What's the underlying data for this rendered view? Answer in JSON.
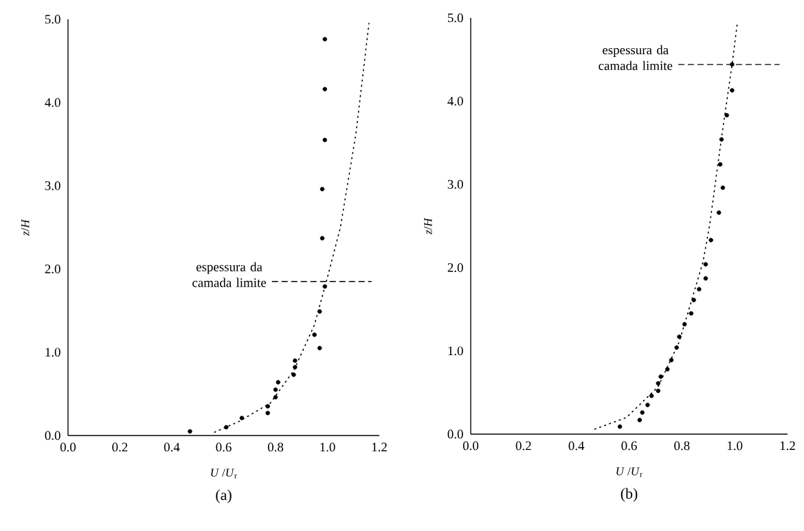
{
  "chart_data": [
    {
      "type": "scatter",
      "title": "(a)",
      "xlabel": "*U* /*U*$_{r}$",
      "ylabel": "*z*/*H*",
      "xlim": [
        0,
        1.2
      ],
      "ylim": [
        0,
        5
      ],
      "xticks": [
        {
          "value": 0,
          "label": "0.0"
        },
        {
          "value": 0.2,
          "label": "0.2"
        },
        {
          "value": 0.4,
          "label": "0.4"
        },
        {
          "value": 0.6,
          "label": "0.6"
        },
        {
          "value": 0.8,
          "label": "0.8"
        },
        {
          "value": 1,
          "label": "1.0"
        },
        {
          "value": 1.2,
          "label": "1.2"
        }
      ],
      "yticks": [
        {
          "value": 0,
          "label": "0.0"
        },
        {
          "value": 1,
          "label": "1.0"
        },
        {
          "value": 2,
          "label": "2.0"
        },
        {
          "value": 3,
          "label": "3.0"
        },
        {
          "value": 4,
          "label": "4.0"
        },
        {
          "value": 5,
          "label": "5.0"
        }
      ],
      "series": [
        {
          "type": "scatter",
          "marker": "circle",
          "color": "#000000",
          "x": [
            0.47,
            0.61,
            0.67,
            0.77,
            0.77,
            0.8,
            0.8,
            0.81,
            0.87,
            0.875,
            0.875,
            0.97,
            0.95,
            0.97,
            0.99,
            0.98,
            0.98,
            0.99,
            0.99,
            0.99
          ],
          "values": [
            0.05,
            0.1,
            0.21,
            0.27,
            0.35,
            0.46,
            0.55,
            0.64,
            0.73,
            0.82,
            0.9,
            1.05,
            1.21,
            1.49,
            1.79,
            2.37,
            2.96,
            3.55,
            4.16,
            4.76
          ]
        },
        {
          "type": "line",
          "marker": "none",
          "line_style": "dotted",
          "color": "#000000",
          "x": [
            0.565,
            0.66,
            0.78,
            0.87,
            0.95,
            0.995,
            1.05,
            1.11,
            1.16
          ],
          "values": [
            0.04,
            0.17,
            0.39,
            0.78,
            1.33,
            1.84,
            2.5,
            3.63,
            4.95
          ]
        }
      ],
      "ref_lines": [
        {
          "axis": "y",
          "value": 1.85,
          "label": "espessura da camada limite",
          "line_style": "dashed",
          "color": "#000000"
        }
      ]
    },
    {
      "type": "scatter",
      "title": "(b)",
      "xlabel": "*U* /*U*$_{r}$",
      "ylabel": "*z*/*H*",
      "xlim": [
        0,
        1.2
      ],
      "ylim": [
        0,
        5
      ],
      "xticks": [
        {
          "value": 0,
          "label": "0.0"
        },
        {
          "value": 0.2,
          "label": "0.2"
        },
        {
          "value": 0.4,
          "label": "0.4"
        },
        {
          "value": 0.6,
          "label": "0.6"
        },
        {
          "value": 0.8,
          "label": "0.8"
        },
        {
          "value": 1,
          "label": "1.0"
        },
        {
          "value": 1.2,
          "label": "1.2"
        }
      ],
      "yticks": [
        {
          "value": 0,
          "label": "0.0"
        },
        {
          "value": 1,
          "label": "1.0"
        },
        {
          "value": 2,
          "label": "2.0"
        },
        {
          "value": 3,
          "label": "3.0"
        },
        {
          "value": 4,
          "label": "4.0"
        },
        {
          "value": 5,
          "label": "5.0"
        }
      ],
      "series": [
        {
          "type": "scatter",
          "marker": "circle",
          "color": "#000000",
          "x": [
            0.565,
            0.64,
            0.65,
            0.67,
            0.685,
            0.71,
            0.71,
            0.72,
            0.745,
            0.76,
            0.78,
            0.79,
            0.81,
            0.835,
            0.845,
            0.865,
            0.89,
            0.89,
            0.91,
            0.94,
            0.955,
            0.945,
            0.95,
            0.97,
            0.99,
            0.99
          ],
          "values": [
            0.09,
            0.17,
            0.26,
            0.35,
            0.46,
            0.52,
            0.61,
            0.69,
            0.78,
            0.89,
            1.04,
            1.17,
            1.32,
            1.45,
            1.61,
            1.74,
            1.87,
            2.04,
            2.33,
            2.66,
            2.96,
            3.24,
            3.54,
            3.83,
            4.13,
            4.44
          ]
        },
        {
          "type": "line",
          "marker": "none",
          "line_style": "dotted",
          "color": "#000000",
          "x": [
            0.47,
            0.59,
            0.71,
            0.79,
            0.88,
            0.905,
            0.95,
            0.99,
            1.01
          ],
          "values": [
            0.06,
            0.2,
            0.57,
            1.11,
            2.07,
            2.51,
            3.56,
            4.44,
            4.94
          ]
        }
      ],
      "ref_lines": [
        {
          "axis": "y",
          "value": 4.44,
          "label": "espessura da camada limite",
          "line_style": "dashed",
          "color": "#000000"
        }
      ]
    }
  ]
}
